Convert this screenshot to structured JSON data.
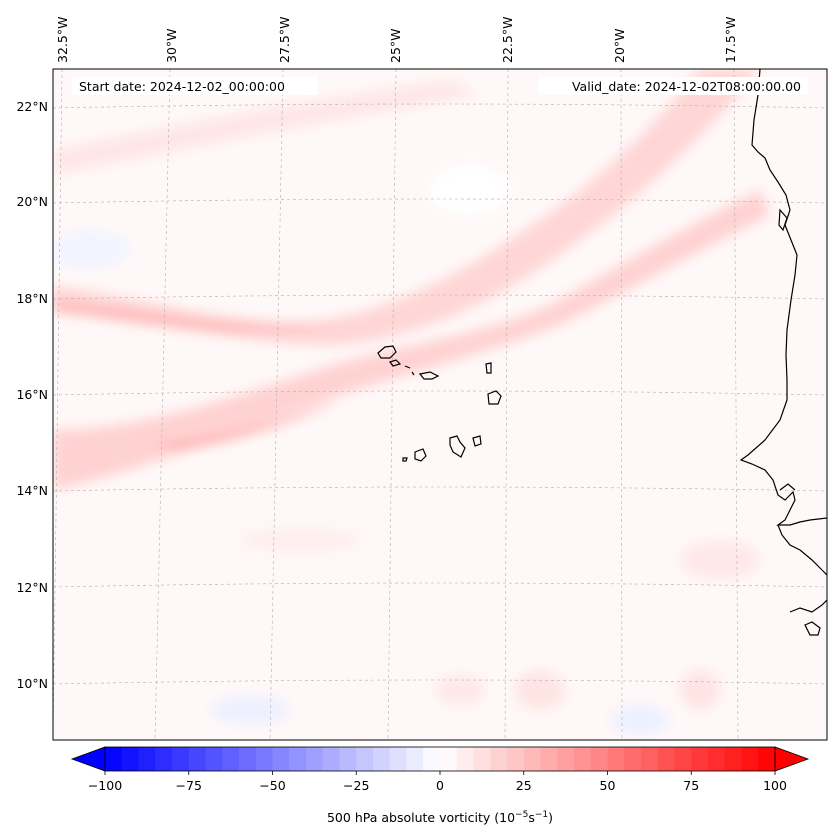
{
  "header": {
    "start_label": "Start date: 2024-12-02_00:00:00",
    "valid_label": "Valid_date: 2024-12-02T08:00:00.00"
  },
  "map": {
    "lon_labels": [
      "32.5°W",
      "30°W",
      "27.5°W",
      "25°W",
      "22.5°W",
      "20°W",
      "17.5°W"
    ],
    "lat_labels": [
      "22°N",
      "20°N",
      "18°N",
      "16°N",
      "14°N",
      "12°N",
      "10°N"
    ],
    "field_name": "500 hPa absolute vorticity",
    "features": [
      "Cape Verde islands",
      "West African coastline"
    ]
  },
  "colorbar": {
    "ticks": [
      "−100",
      "−75",
      "−50",
      "−25",
      "0",
      "25",
      "50",
      "75",
      "100"
    ],
    "min": -100,
    "max": 100,
    "n_bins": 40,
    "neg_color": "#0000ff",
    "pos_color": "#ff0000",
    "mid_color": "#ffffff",
    "label_text": "500 hPa absolute vorticity (10",
    "label_exp1": "−5",
    "label_mid": "s",
    "label_exp2": "−1",
    "label_end": ")"
  },
  "colors": {
    "coast": "#000000",
    "grid": "#b0b0b0",
    "background": "#ffffff"
  }
}
